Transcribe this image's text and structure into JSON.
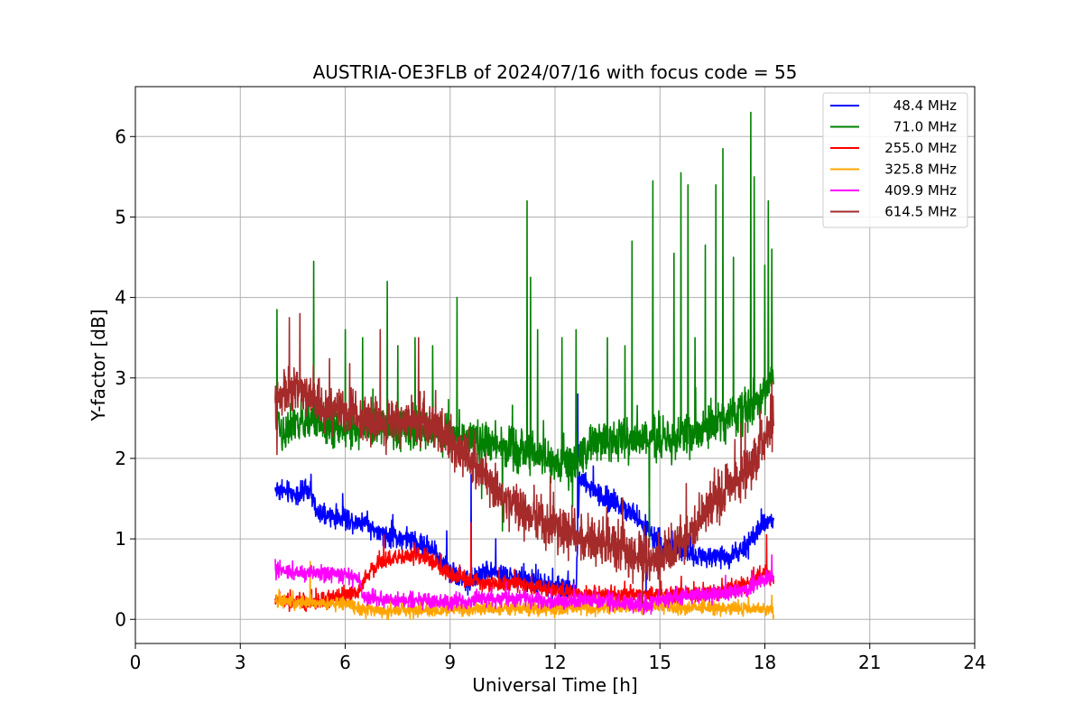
{
  "chart_data": {
    "type": "line",
    "title": "AUSTRIA-OE3FLB of 2024/07/16 with focus code = 55",
    "xlabel": "Universal Time [h]",
    "ylabel": "Y-factor [dB]",
    "xlim": [
      0,
      24
    ],
    "ylim": [
      -0.3,
      6.62
    ],
    "xticks": [
      0,
      3,
      6,
      9,
      12,
      15,
      18,
      21,
      24
    ],
    "yticks": [
      0,
      1,
      2,
      3,
      4,
      5,
      6
    ],
    "grid": true,
    "legend_position": "top-right",
    "x_start": 4.0,
    "x_end": 18.25,
    "series": [
      {
        "name": "48.4 MHz",
        "color": "#0000ff",
        "baseline": [
          [
            4.0,
            1.62
          ],
          [
            4.6,
            1.55
          ],
          [
            5.0,
            1.6
          ],
          [
            5.2,
            1.3
          ],
          [
            6.0,
            1.25
          ],
          [
            6.6,
            1.2
          ],
          [
            7.0,
            1.05
          ],
          [
            7.8,
            1.0
          ],
          [
            8.5,
            0.85
          ],
          [
            9.0,
            0.6
          ],
          [
            9.5,
            0.45
          ],
          [
            10.0,
            0.6
          ],
          [
            11.0,
            0.5
          ],
          [
            12.0,
            0.4
          ],
          [
            12.6,
            0.38
          ],
          [
            12.7,
            1.75
          ],
          [
            13.4,
            1.5
          ],
          [
            14.0,
            1.4
          ],
          [
            14.6,
            1.15
          ],
          [
            15.0,
            0.9
          ],
          [
            16.0,
            0.8
          ],
          [
            17.0,
            0.78
          ],
          [
            17.5,
            0.9
          ],
          [
            18.0,
            1.2
          ],
          [
            18.25,
            1.25
          ]
        ],
        "noise": 0.08,
        "spikes": [
          [
            9.6,
            1.8
          ],
          [
            8.9,
            1.1
          ],
          [
            10.3,
            1.0
          ],
          [
            12.65,
            2.8
          ],
          [
            12.9,
            1.6
          ],
          [
            14.6,
            0.3
          ]
        ]
      },
      {
        "name": "71.0 MHz",
        "color": "#008000",
        "baseline": [
          [
            4.0,
            2.7
          ],
          [
            4.2,
            2.3
          ],
          [
            5.0,
            2.5
          ],
          [
            6.0,
            2.35
          ],
          [
            7.0,
            2.4
          ],
          [
            8.0,
            2.35
          ],
          [
            9.0,
            2.3
          ],
          [
            10.0,
            2.2
          ],
          [
            11.0,
            2.1
          ],
          [
            12.0,
            1.95
          ],
          [
            12.6,
            1.9
          ],
          [
            13.0,
            2.2
          ],
          [
            14.0,
            2.25
          ],
          [
            15.0,
            2.2
          ],
          [
            16.0,
            2.3
          ],
          [
            17.0,
            2.5
          ],
          [
            17.5,
            2.6
          ],
          [
            18.0,
            2.85
          ],
          [
            18.25,
            3.0
          ]
        ],
        "noise": 0.15,
        "spikes": [
          [
            4.05,
            3.85
          ],
          [
            5.1,
            4.45
          ],
          [
            6.0,
            3.6
          ],
          [
            6.5,
            3.5
          ],
          [
            7.2,
            4.2
          ],
          [
            7.5,
            3.4
          ],
          [
            8.0,
            3.5
          ],
          [
            8.5,
            3.4
          ],
          [
            9.2,
            4.0
          ],
          [
            10.5,
            3.5
          ],
          [
            11.2,
            5.2
          ],
          [
            11.3,
            4.25
          ],
          [
            11.5,
            3.6
          ],
          [
            12.2,
            3.5
          ],
          [
            12.6,
            3.6
          ],
          [
            13.5,
            3.5
          ],
          [
            14.0,
            3.4
          ],
          [
            14.2,
            4.7
          ],
          [
            14.8,
            5.45
          ],
          [
            15.4,
            4.55
          ],
          [
            15.6,
            5.55
          ],
          [
            15.8,
            5.4
          ],
          [
            16.0,
            3.5
          ],
          [
            16.3,
            4.65
          ],
          [
            16.6,
            5.4
          ],
          [
            16.8,
            5.85
          ],
          [
            17.1,
            4.5
          ],
          [
            17.6,
            6.3
          ],
          [
            17.7,
            5.5
          ],
          [
            18.0,
            4.4
          ],
          [
            18.1,
            5.2
          ],
          [
            18.2,
            4.6
          ],
          [
            12.5,
            1.4
          ],
          [
            14.7,
            0.9
          ],
          [
            9.9,
            1.5
          ],
          [
            10.5,
            1.1
          ]
        ]
      },
      {
        "name": "255.0 MHz",
        "color": "#ff0000",
        "baseline": [
          [
            4.0,
            0.25
          ],
          [
            5.0,
            0.2
          ],
          [
            6.0,
            0.3
          ],
          [
            6.4,
            0.35
          ],
          [
            6.6,
            0.55
          ],
          [
            7.0,
            0.7
          ],
          [
            7.5,
            0.78
          ],
          [
            8.0,
            0.8
          ],
          [
            8.5,
            0.72
          ],
          [
            9.0,
            0.55
          ],
          [
            10.0,
            0.45
          ],
          [
            11.0,
            0.42
          ],
          [
            12.0,
            0.35
          ],
          [
            13.0,
            0.3
          ],
          [
            14.0,
            0.3
          ],
          [
            15.0,
            0.3
          ],
          [
            16.0,
            0.32
          ],
          [
            17.0,
            0.35
          ],
          [
            17.5,
            0.45
          ],
          [
            18.0,
            0.6
          ],
          [
            18.25,
            0.5
          ]
        ],
        "noise": 0.06,
        "spikes": [
          [
            7.1,
            1.05
          ],
          [
            8.0,
            0.95
          ],
          [
            9.6,
            1.2
          ],
          [
            18.05,
            1.05
          ],
          [
            4.4,
            0.1
          ]
        ]
      },
      {
        "name": "325.8 MHz",
        "color": "#ffa500",
        "baseline": [
          [
            4.0,
            0.22
          ],
          [
            5.0,
            0.2
          ],
          [
            6.0,
            0.2
          ],
          [
            6.5,
            0.12
          ],
          [
            7.0,
            0.1
          ],
          [
            8.0,
            0.1
          ],
          [
            9.0,
            0.12
          ],
          [
            10.0,
            0.13
          ],
          [
            11.0,
            0.13
          ],
          [
            12.0,
            0.13
          ],
          [
            13.0,
            0.14
          ],
          [
            14.0,
            0.14
          ],
          [
            15.0,
            0.15
          ],
          [
            16.0,
            0.15
          ],
          [
            17.0,
            0.13
          ],
          [
            18.0,
            0.13
          ],
          [
            18.25,
            0.12
          ]
        ],
        "noise": 0.05,
        "spikes": [
          [
            5.0,
            0.72
          ],
          [
            4.5,
            0.35
          ],
          [
            13.2,
            0.3
          ],
          [
            18.2,
            0.3
          ]
        ]
      },
      {
        "name": "409.9 MHz",
        "color": "#ff00ff",
        "baseline": [
          [
            4.0,
            0.6
          ],
          [
            5.0,
            0.58
          ],
          [
            6.0,
            0.55
          ],
          [
            6.4,
            0.5
          ],
          [
            6.5,
            0.28
          ],
          [
            7.0,
            0.24
          ],
          [
            8.0,
            0.23
          ],
          [
            9.0,
            0.22
          ],
          [
            10.0,
            0.25
          ],
          [
            11.0,
            0.26
          ],
          [
            12.0,
            0.22
          ],
          [
            13.0,
            0.24
          ],
          [
            14.0,
            0.2
          ],
          [
            14.5,
            0.15
          ],
          [
            15.0,
            0.25
          ],
          [
            16.0,
            0.3
          ],
          [
            17.0,
            0.32
          ],
          [
            17.5,
            0.38
          ],
          [
            18.0,
            0.5
          ],
          [
            18.25,
            0.55
          ]
        ],
        "noise": 0.06,
        "spikes": [
          [
            4.0,
            0.75
          ],
          [
            18.2,
            0.8
          ]
        ]
      },
      {
        "name": "614.5 MHz",
        "color": "#a52a2a",
        "baseline": [
          [
            4.0,
            2.7
          ],
          [
            4.5,
            2.85
          ],
          [
            5.0,
            2.8
          ],
          [
            5.5,
            2.6
          ],
          [
            6.0,
            2.6
          ],
          [
            6.5,
            2.5
          ],
          [
            7.0,
            2.4
          ],
          [
            7.5,
            2.45
          ],
          [
            8.0,
            2.5
          ],
          [
            8.5,
            2.4
          ],
          [
            9.0,
            2.2
          ],
          [
            9.5,
            2.0
          ],
          [
            10.0,
            1.75
          ],
          [
            10.5,
            1.5
          ],
          [
            11.0,
            1.35
          ],
          [
            12.0,
            1.15
          ],
          [
            13.0,
            1.0
          ],
          [
            14.0,
            0.85
          ],
          [
            14.5,
            0.75
          ],
          [
            15.0,
            0.75
          ],
          [
            15.5,
            0.9
          ],
          [
            16.0,
            1.15
          ],
          [
            16.5,
            1.45
          ],
          [
            17.0,
            1.65
          ],
          [
            17.5,
            1.85
          ],
          [
            18.0,
            2.2
          ],
          [
            18.25,
            2.45
          ]
        ],
        "noise": 0.17,
        "spikes": [
          [
            4.4,
            3.75
          ],
          [
            4.7,
            3.8
          ],
          [
            4.05,
            2.05
          ],
          [
            14.5,
            0.2
          ],
          [
            15.0,
            0.3
          ],
          [
            18.2,
            2.95
          ],
          [
            7.0,
            3.6
          ],
          [
            8.1,
            3.5
          ]
        ]
      }
    ]
  }
}
